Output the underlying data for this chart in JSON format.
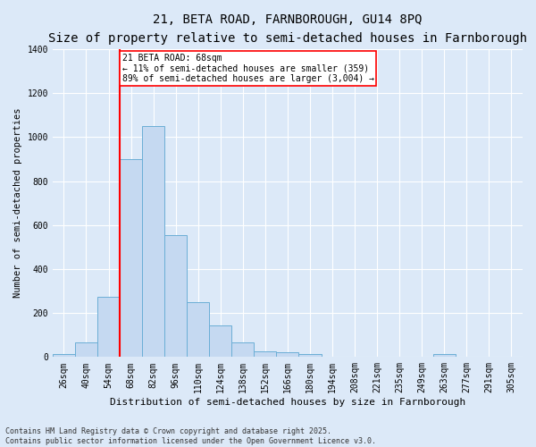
{
  "title_line1": "21, BETA ROAD, FARNBOROUGH, GU14 8PQ",
  "title_line2": "Size of property relative to semi-detached houses in Farnborough",
  "xlabel": "Distribution of semi-detached houses by size in Farnborough",
  "ylabel": "Number of semi-detached properties",
  "categories": [
    "26sqm",
    "40sqm",
    "54sqm",
    "68sqm",
    "82sqm",
    "96sqm",
    "110sqm",
    "124sqm",
    "138sqm",
    "152sqm",
    "166sqm",
    "180sqm",
    "194sqm",
    "208sqm",
    "221sqm",
    "235sqm",
    "249sqm",
    "263sqm",
    "277sqm",
    "291sqm",
    "305sqm"
  ],
  "values": [
    15,
    65,
    275,
    900,
    1050,
    555,
    250,
    145,
    65,
    25,
    20,
    12,
    0,
    0,
    0,
    0,
    0,
    12,
    0,
    0,
    0
  ],
  "bar_color": "#c5d9f1",
  "bar_edge_color": "#6baed6",
  "vline_color": "red",
  "vline_index": 3,
  "annotation_text": "21 BETA ROAD: 68sqm\n← 11% of semi-detached houses are smaller (359)\n89% of semi-detached houses are larger (3,004) →",
  "annotation_box_facecolor": "white",
  "annotation_box_edgecolor": "red",
  "ylim": [
    0,
    1400
  ],
  "yticks": [
    0,
    200,
    400,
    600,
    800,
    1000,
    1200,
    1400
  ],
  "background_color": "#dce9f8",
  "plot_bg_color": "#dce9f8",
  "grid_color": "white",
  "footnote": "Contains HM Land Registry data © Crown copyright and database right 2025.\nContains public sector information licensed under the Open Government Licence v3.0.",
  "title_fontsize": 10,
  "subtitle_fontsize": 8.5,
  "xlabel_fontsize": 8,
  "ylabel_fontsize": 7.5,
  "tick_fontsize": 7,
  "annotation_fontsize": 7,
  "footnote_fontsize": 6
}
